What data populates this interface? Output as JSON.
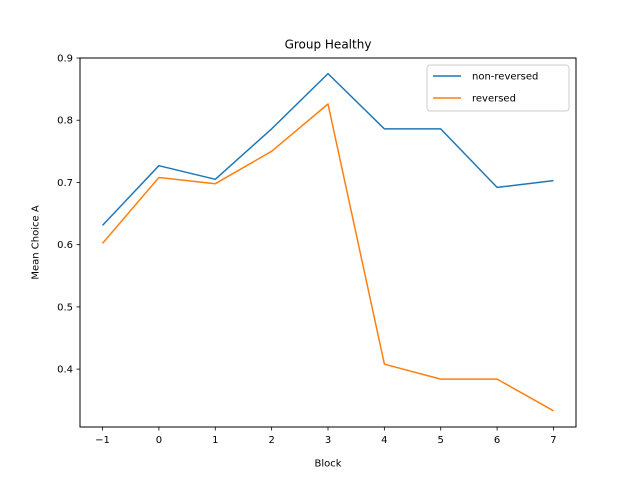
{
  "chart_data": {
    "type": "line",
    "title": "Group Healthy",
    "xlabel": "Block",
    "ylabel": "Mean Choice A",
    "x": [
      -1,
      0,
      1,
      2,
      3,
      4,
      5,
      6,
      7
    ],
    "x_tick_labels": [
      "−1",
      "0",
      "1",
      "2",
      "3",
      "4",
      "5",
      "6",
      "7"
    ],
    "xlim": [
      -1.4,
      7.4
    ],
    "ylim": [
      0.307,
      0.9
    ],
    "y_ticks": [
      0.4,
      0.5,
      0.6,
      0.7,
      0.8,
      0.9
    ],
    "y_tick_labels": [
      "0.4",
      "0.5",
      "0.6",
      "0.7",
      "0.8",
      "0.9"
    ],
    "grid": false,
    "legend_position": "top-right",
    "series": [
      {
        "name": "non-reversed",
        "color": "#1f77b4",
        "values": [
          0.631,
          0.727,
          0.705,
          0.786,
          0.875,
          0.786,
          0.786,
          0.692,
          0.703
        ]
      },
      {
        "name": "reversed",
        "color": "#ff7f0e",
        "values": [
          0.602,
          0.708,
          0.698,
          0.75,
          0.826,
          0.408,
          0.384,
          0.384,
          0.333
        ]
      }
    ]
  }
}
